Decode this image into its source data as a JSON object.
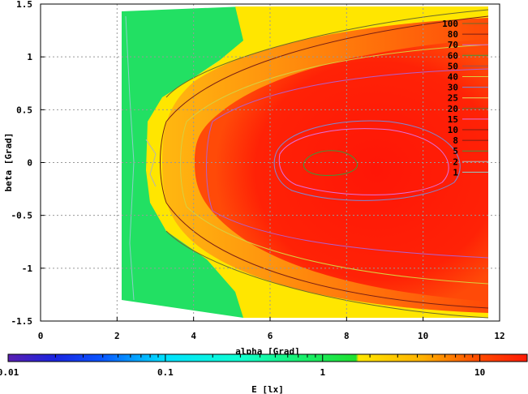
{
  "chart_data": {
    "type": "heatmap",
    "title": "",
    "xlabel": "alpha [Grad]",
    "ylabel": "beta [Grad]",
    "xlim": [
      0,
      12
    ],
    "ylim": [
      1.5,
      -1.5
    ],
    "xticks": [
      "0",
      "2",
      "4",
      "6",
      "8",
      "10",
      "12"
    ],
    "yticks": [
      "-1.5",
      "-1",
      "-0.5",
      "0",
      "0.5",
      "1",
      "1.5"
    ],
    "grid": true,
    "contour_levels": [
      "100",
      "80",
      "70",
      "60",
      "50",
      "40",
      "30",
      "25",
      "20",
      "15",
      "10",
      "8",
      "5",
      "2",
      "1"
    ],
    "contour_key_position": "top-right",
    "colorbar": {
      "label": "E [lx]",
      "scale": "log",
      "range": [
        0.01,
        20
      ],
      "ticks": [
        "0.01",
        "0.1",
        "1",
        "10"
      ]
    },
    "colors": {
      "background": "#ffffff",
      "green": "#22e063",
      "yellow": "#ffe600",
      "orange": "#ff9a10",
      "red": "#ff1a06"
    }
  }
}
